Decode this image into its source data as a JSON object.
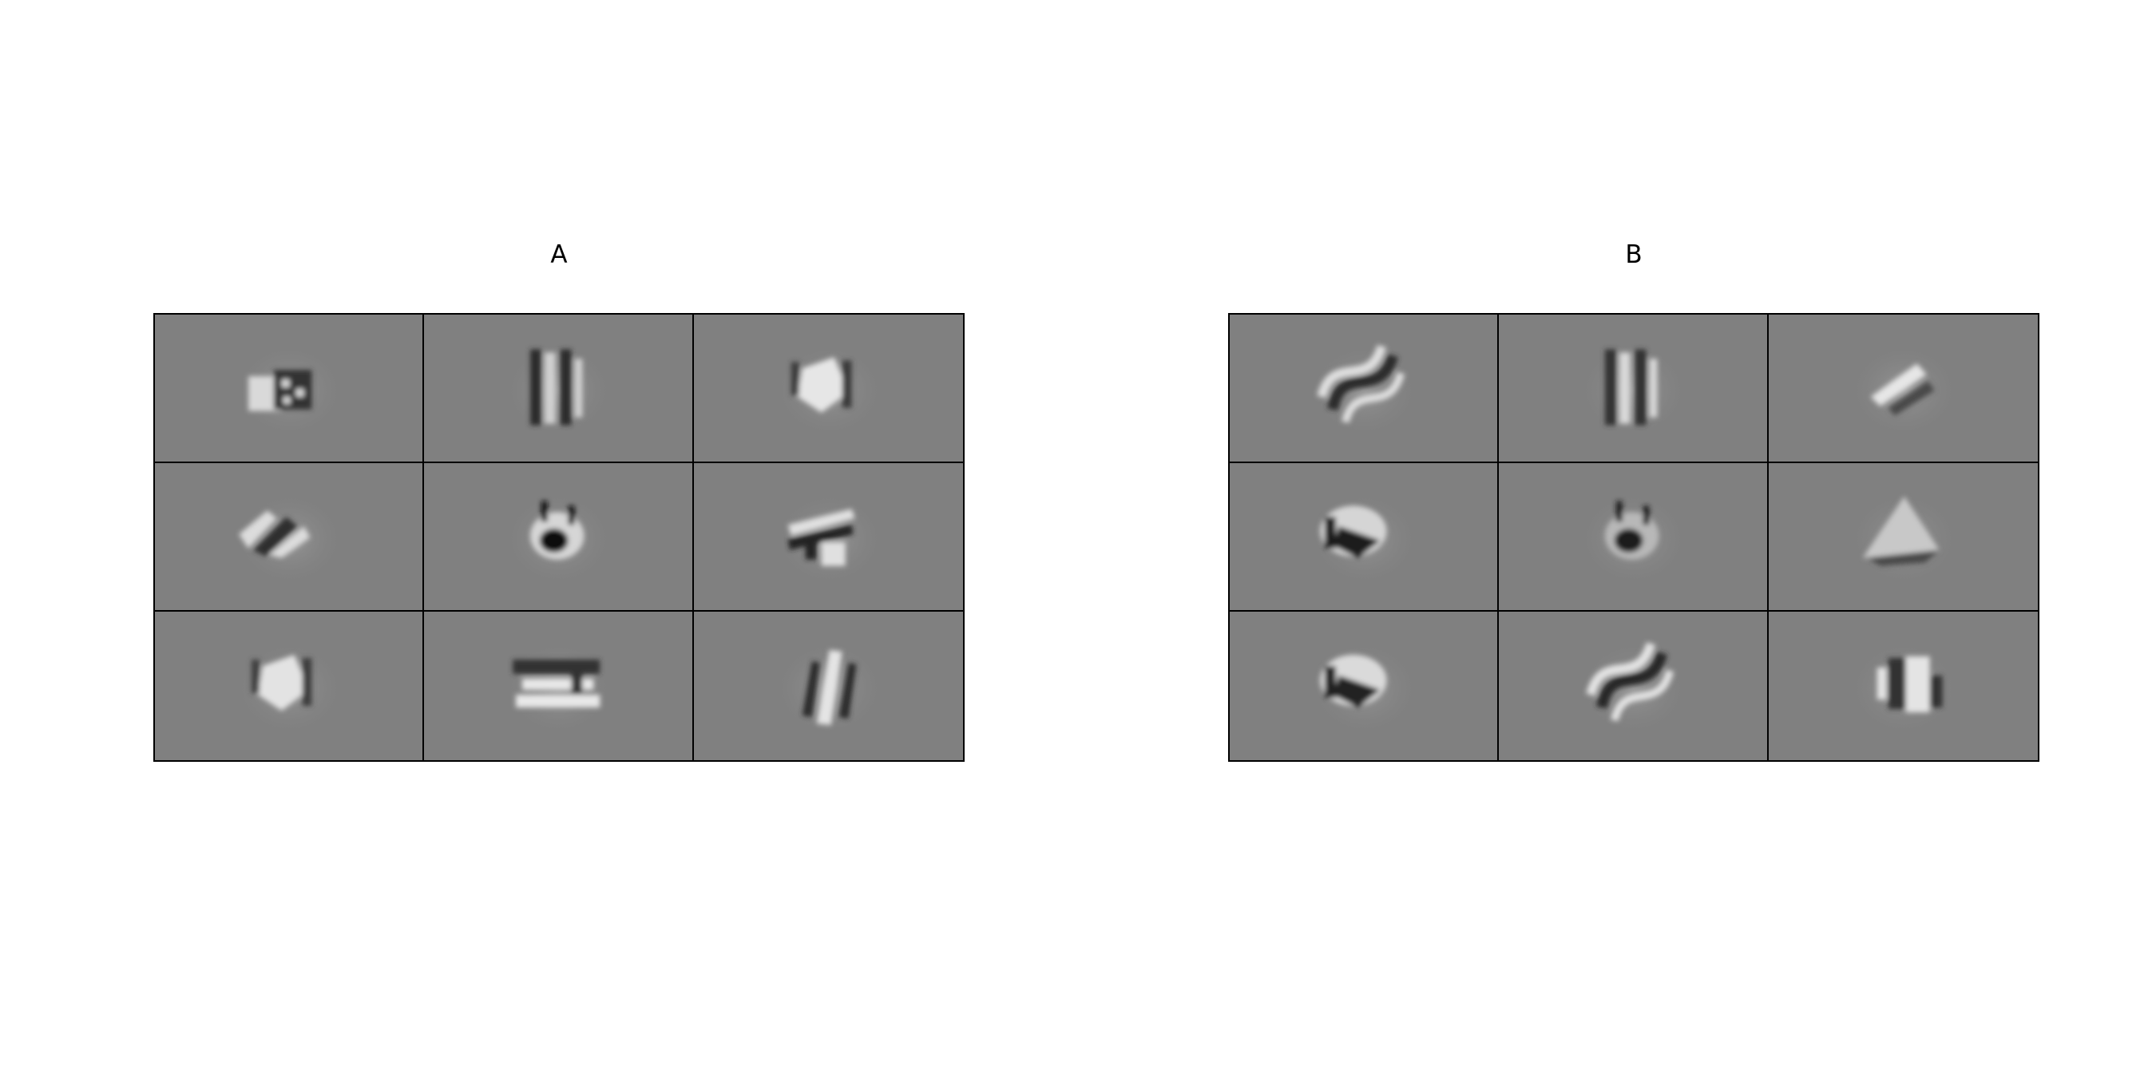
{
  "panels": [
    {
      "title": "A",
      "cells": [
        {
          "shape": "checker-blob",
          "light": "#d9d9d9",
          "dark": "#303030"
        },
        {
          "shape": "vertical-bars",
          "light": "#d0d0d0",
          "dark": "#2a2a2a"
        },
        {
          "shape": "diamond-blob",
          "light": "#e6e6e6",
          "dark": "#3a3a3a"
        },
        {
          "shape": "diagonal-stripes",
          "light": "#dcdcdc",
          "dark": "#2e2e2e"
        },
        {
          "shape": "dark-spot",
          "light": "#d6d6d6",
          "dark": "#111111"
        },
        {
          "shape": "horizontal-zigzag",
          "light": "#e0e0e0",
          "dark": "#222222"
        },
        {
          "shape": "diamond-blob",
          "light": "#e3e3e3",
          "dark": "#3c3c3c"
        },
        {
          "shape": "horizontal-bars",
          "light": "#e8e8e8",
          "dark": "#333333"
        },
        {
          "shape": "vertical-slash",
          "light": "#e4e4e4",
          "dark": "#2c2c2c"
        }
      ]
    },
    {
      "title": "B",
      "cells": [
        {
          "shape": "s-curve",
          "light": "#dedede",
          "dark": "#2a2a2a"
        },
        {
          "shape": "vertical-bars",
          "light": "#d8d8d8",
          "dark": "#303030"
        },
        {
          "shape": "diagonal-light",
          "light": "#e6e6e6",
          "dark": "#4a4a4a"
        },
        {
          "shape": "dark-wedge",
          "light": "#d5d5d5",
          "dark": "#1e1e1e"
        },
        {
          "shape": "dark-spot",
          "light": "#b8b8b8",
          "dark": "#1a1a1a"
        },
        {
          "shape": "light-triangle",
          "light": "#c8c8c8",
          "dark": "#4a4a4a"
        },
        {
          "shape": "dark-wedge",
          "light": "#dadada",
          "dark": "#222222"
        },
        {
          "shape": "s-curve",
          "light": "#e2e2e2",
          "dark": "#262626"
        },
        {
          "shape": "block-bars",
          "light": "#e4e4e4",
          "dark": "#303030"
        }
      ]
    }
  ]
}
